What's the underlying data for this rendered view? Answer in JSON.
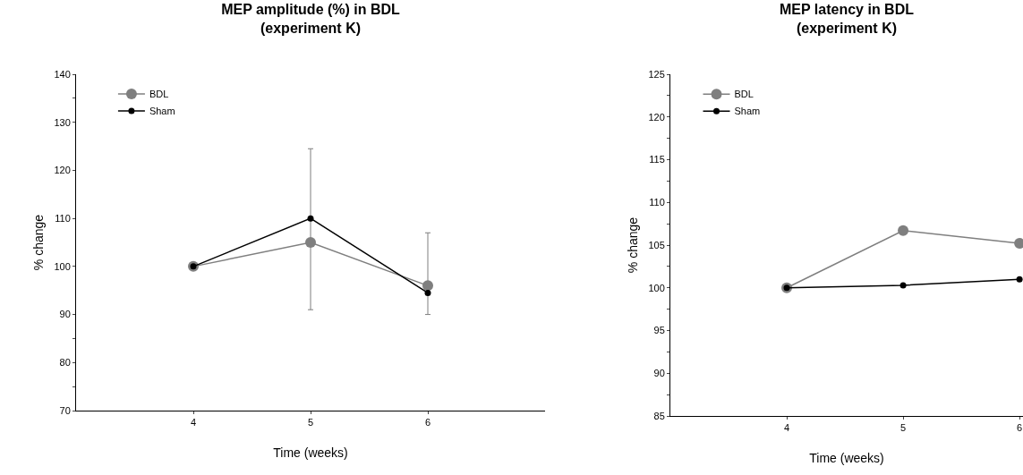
{
  "chart_data": [
    {
      "type": "line",
      "title": "MEP amplitude (%) in BDL\n(experiment K)",
      "xlabel": "Time (weeks)",
      "ylabel": "% change",
      "x": [
        4,
        5,
        6
      ],
      "xlim": [
        3,
        7
      ],
      "xticks": [
        4,
        5,
        6
      ],
      "ylim": [
        70,
        140
      ],
      "yticks": [
        70,
        {
          "value": 75,
          "label": null
        },
        80,
        {
          "value": 85,
          "label": null
        },
        90,
        100,
        110,
        120,
        130,
        {
          "value": 135,
          "label": null
        },
        140
      ],
      "grid": false,
      "legend": "top left",
      "marker": "circle",
      "line_style": "solid",
      "series": [
        {
          "name": "BDL",
          "color": "#7f7f7f",
          "values": [
            100,
            105,
            96
          ],
          "errors": [
            null,
            [
              91,
              124.5
            ],
            [
              90,
              107
            ]
          ]
        },
        {
          "name": "Sham",
          "color": "#000000",
          "values": [
            100,
            110,
            94.5
          ]
        }
      ]
    },
    {
      "type": "line",
      "title": "MEP latency in BDL\n(experiment K)",
      "xlabel": "Time (weeks)",
      "ylabel": "% change",
      "x": [
        4,
        5,
        6
      ],
      "xlim": [
        3,
        6.03
      ],
      "xticks": [
        4,
        5,
        6
      ],
      "ylim": [
        85,
        125
      ],
      "yticks": [
        85,
        {
          "value": 87.5,
          "label": null
        },
        90,
        {
          "value": 92.5,
          "label": null
        },
        95,
        {
          "value": 97.5,
          "label": null
        },
        100,
        {
          "value": 102.5,
          "label": null
        },
        105,
        {
          "value": 107.5,
          "label": null
        },
        110,
        {
          "value": 112.5,
          "label": null
        },
        115,
        {
          "value": 117.5,
          "label": null
        },
        120,
        {
          "value": 122.5,
          "label": null
        },
        125
      ],
      "grid": false,
      "legend": "top left",
      "marker": "circle",
      "line_style": "solid",
      "series": [
        {
          "name": "BDL",
          "color": "#7f7f7f",
          "values": [
            100,
            106.7,
            105.2
          ]
        },
        {
          "name": "Sham",
          "color": "#000000",
          "values": [
            100,
            100.3,
            101
          ]
        }
      ]
    }
  ]
}
